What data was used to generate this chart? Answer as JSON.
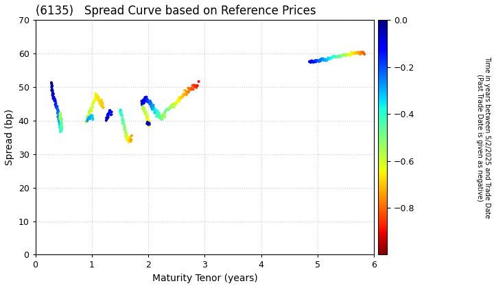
{
  "title": "(6135)   Spread Curve based on Reference Prices",
  "xlabel": "Maturity Tenor (years)",
  "ylabel": "Spread (bp)",
  "colorbar_label_line1": "Time in years between 5/2/2025 and Trade Date",
  "colorbar_label_line2": "(Past Trade Date is given as negative)",
  "xlim": [
    0,
    6
  ],
  "ylim": [
    0,
    70
  ],
  "xticks": [
    0,
    1,
    2,
    3,
    4,
    5,
    6
  ],
  "yticks": [
    0,
    10,
    20,
    30,
    40,
    50,
    60,
    70
  ],
  "cmap": "jet_r",
  "vmin": -1.0,
  "vmax": 0.0,
  "colorbar_ticks": [
    0.0,
    -0.2,
    -0.4,
    -0.6,
    -0.8
  ],
  "background_color": "#ffffff",
  "grid_color": "#cccccc",
  "title_fontsize": 12,
  "label_fontsize": 10,
  "tick_fontsize": 9,
  "marker_size": 8
}
